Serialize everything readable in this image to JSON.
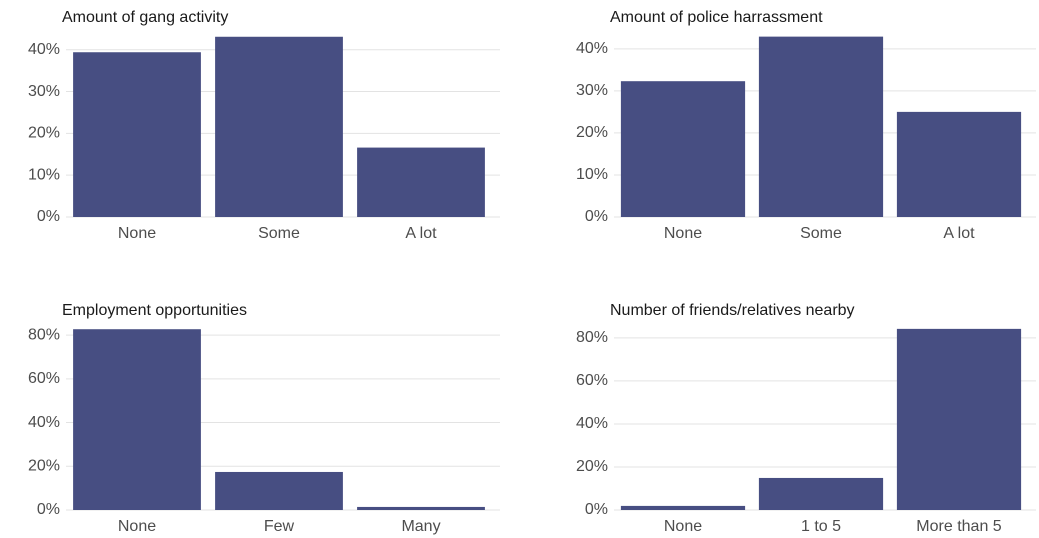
{
  "chart_data": [
    {
      "type": "bar",
      "title": "Amount of gang activity",
      "categories": [
        "None",
        "Some",
        "A lot"
      ],
      "values": [
        39.4,
        43.1,
        16.6
      ],
      "color": "#474e82",
      "ylim": [
        0,
        44
      ],
      "yticks": [
        {
          "value": 0,
          "label": "0%"
        },
        {
          "value": 10,
          "label": "10%"
        },
        {
          "value": 20,
          "label": "20%"
        },
        {
          "value": 30,
          "label": "30%"
        },
        {
          "value": 40,
          "label": "40%"
        }
      ],
      "grid": true
    },
    {
      "type": "bar",
      "title": "Amount of police harrassment",
      "categories": [
        "None",
        "Some",
        "A lot"
      ],
      "values": [
        32.3,
        42.9,
        25.0
      ],
      "color": "#474e82",
      "ylim": [
        0,
        44
      ],
      "yticks": [
        {
          "value": 0,
          "label": "0%"
        },
        {
          "value": 10,
          "label": "10%"
        },
        {
          "value": 20,
          "label": "20%"
        },
        {
          "value": 30,
          "label": "30%"
        },
        {
          "value": 40,
          "label": "40%"
        }
      ],
      "grid": true
    },
    {
      "type": "bar",
      "title": "Employment opportunities",
      "categories": [
        "None",
        "Few",
        "Many"
      ],
      "values": [
        82.7,
        17.4,
        1.4
      ],
      "color": "#474e82",
      "ylim": [
        0,
        86
      ],
      "yticks": [
        {
          "value": 0,
          "label": "0%"
        },
        {
          "value": 20,
          "label": "20%"
        },
        {
          "value": 40,
          "label": "40%"
        },
        {
          "value": 60,
          "label": "60%"
        },
        {
          "value": 80,
          "label": "80%"
        }
      ],
      "grid": true
    },
    {
      "type": "bar",
      "title": "Number of friends/relatives nearby",
      "categories": [
        "None",
        "1 to 5",
        "More than 5"
      ],
      "values": [
        1.9,
        14.9,
        84.2
      ],
      "color": "#474e82",
      "ylim": [
        0,
        86
      ],
      "yticks": [
        {
          "value": 0,
          "label": "0%"
        },
        {
          "value": 20,
          "label": "20%"
        },
        {
          "value": 40,
          "label": "40%"
        },
        {
          "value": 60,
          "label": "60%"
        },
        {
          "value": 80,
          "label": "80%"
        }
      ],
      "grid": true
    }
  ]
}
